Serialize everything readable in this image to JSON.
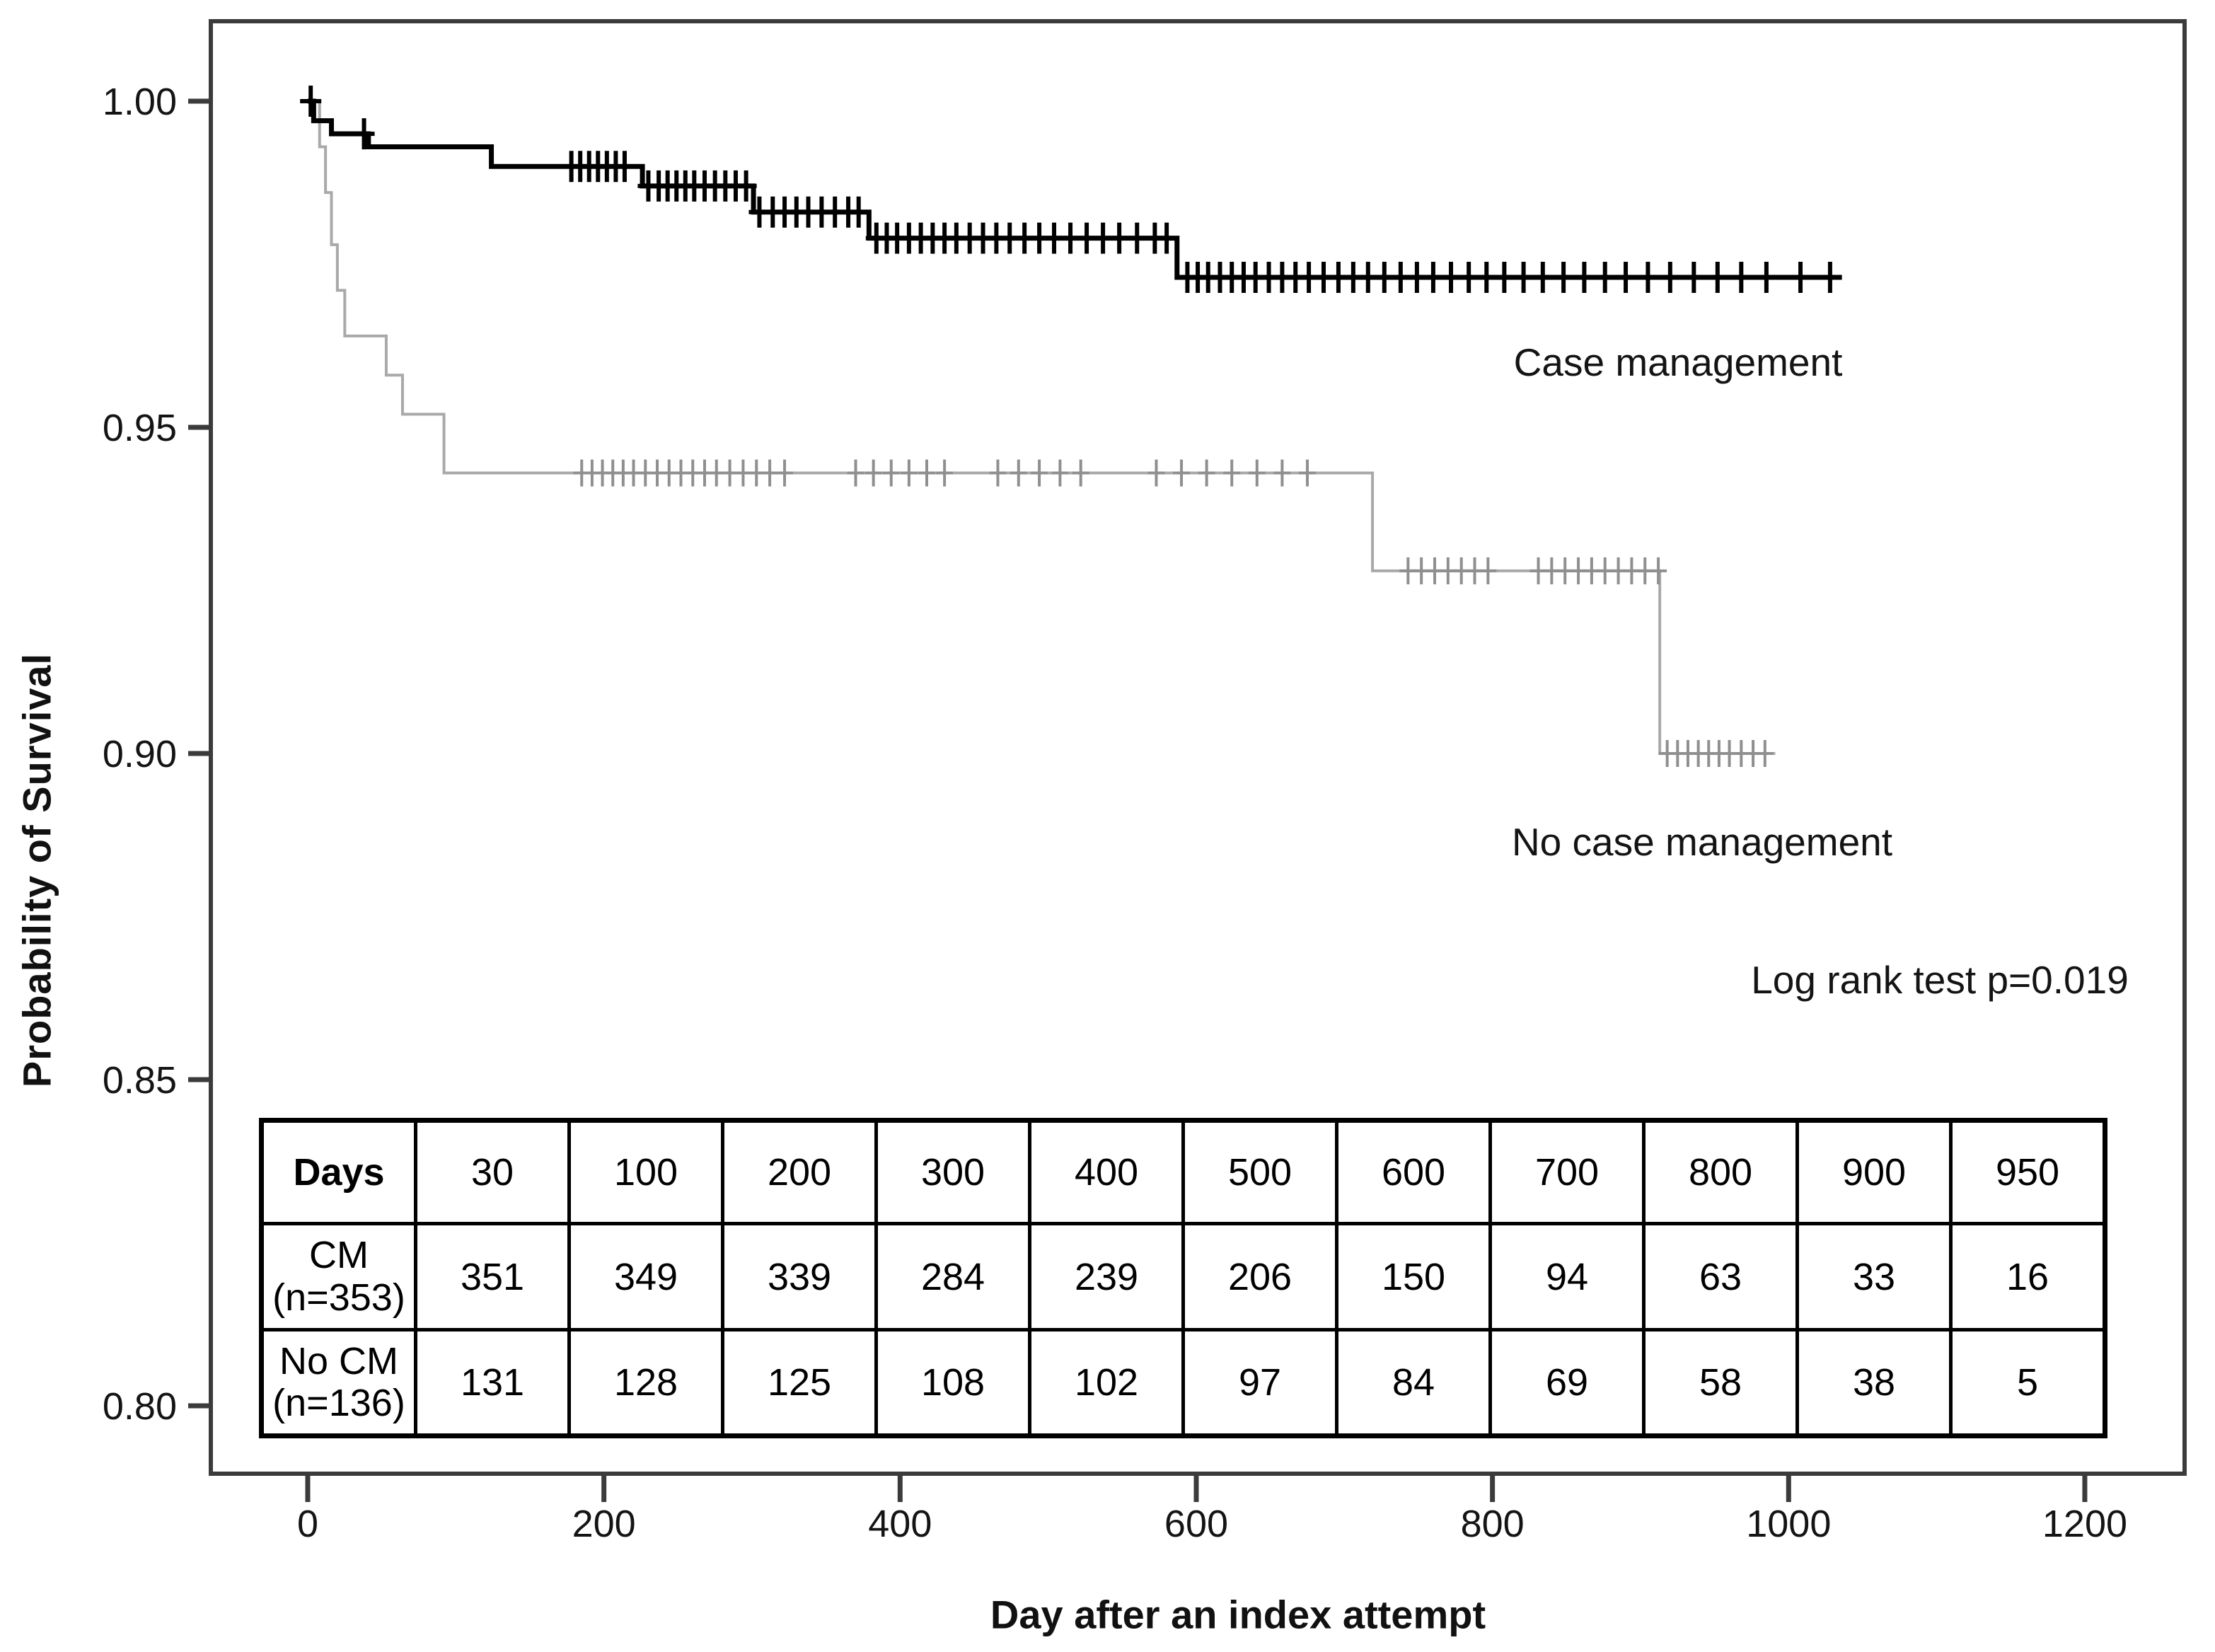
{
  "chart_data": {
    "type": "line",
    "subtype": "kaplan_meier_step",
    "title": "",
    "xlabel": "Day after an index attempt",
    "ylabel": "Probability of Survival",
    "x_ticks": [
      0,
      200,
      400,
      600,
      800,
      1000,
      1200
    ],
    "x_tick_labels": [
      "0",
      "200",
      "400",
      "600",
      "800",
      "1000",
      "1200"
    ],
    "y_ticks": [
      1.0,
      0.95,
      0.9,
      0.85,
      0.8
    ],
    "y_tick_labels": [
      "1.00",
      "0.95",
      "0.90",
      "0.85",
      "0.80"
    ],
    "x_range_days": [
      0,
      1200
    ],
    "y_range": [
      0.8,
      1.0
    ],
    "grid": false,
    "legend_position": "in-plot text annotations",
    "frame_color": "#3b3b3b",
    "text_color": "#141414",
    "annotations": [
      {
        "text": "Case management"
      },
      {
        "text": "No case management"
      },
      {
        "text": "Log rank test p=0.019"
      }
    ],
    "series": [
      {
        "name": "No case management",
        "color": "#a9a9a9",
        "censor_color": "#8f8f8f",
        "line_width": 4,
        "steps": [
          [
            0,
            1.0
          ],
          [
            8,
            0.993
          ],
          [
            12,
            0.986
          ],
          [
            16,
            0.978
          ],
          [
            20,
            0.971
          ],
          [
            25,
            0.964
          ],
          [
            53,
            0.958
          ],
          [
            64,
            0.952
          ],
          [
            92,
            0.943
          ],
          [
            719,
            0.928
          ],
          [
            913,
            0.9
          ]
        ],
        "end_day": 991,
        "censors": [
          {
            "level": 0.943,
            "days": [
              185,
              192,
              199,
              206,
              213,
              220,
              228,
              236,
              244,
              252,
              260,
              268,
              276,
              285,
              294,
              303,
              312,
              322,
              370,
              382,
              394,
              406,
              418,
              430,
              466,
              480,
              494,
              508,
              522,
              573,
              590,
              607,
              624,
              641,
              658,
              675
            ]
          },
          {
            "level": 0.928,
            "days": [
              743,
              752,
              761,
              770,
              779,
              788,
              797,
              831,
              840,
              849,
              858,
              867,
              876,
              885,
              894,
              903,
              912
            ]
          },
          {
            "level": 0.9,
            "days": [
              918,
              925,
              932,
              939,
              946,
              953,
              960,
              968,
              976,
              984
            ]
          }
        ]
      },
      {
        "name": "Case management",
        "color": "#000000",
        "censor_color": "#000000",
        "line_width": 7,
        "steps": [
          [
            0,
            1.0
          ],
          [
            4,
            0.997
          ],
          [
            16,
            0.995
          ],
          [
            41,
            0.993
          ],
          [
            124,
            0.99
          ],
          [
            226,
            0.987
          ],
          [
            301,
            0.983
          ],
          [
            379,
            0.979
          ],
          [
            587,
            0.973
          ]
        ],
        "end_day": 1036,
        "censors": [
          {
            "level": 1.0,
            "days": [
              2
            ]
          },
          {
            "level": 0.995,
            "days": [
              38
            ]
          },
          {
            "level": 0.99,
            "days": [
              178,
              184,
              190,
              196,
              202,
              208,
              214
            ]
          },
          {
            "level": 0.987,
            "days": [
              230,
              237,
              243,
              249,
              255,
              261,
              268,
              275,
              282,
              289,
              296
            ]
          },
          {
            "level": 0.983,
            "days": [
              305,
              314,
              322,
              330,
              338,
              347,
              356,
              365,
              372
            ]
          },
          {
            "level": 0.979,
            "days": [
              384,
              391,
              398,
              406,
              414,
              422,
              430,
              438,
              447,
              456,
              465,
              474,
              484,
              494,
              504,
              515,
              526,
              537,
              548,
              560,
              572,
              580
            ]
          },
          {
            "level": 0.973,
            "days": [
              594,
              601,
              608,
              616,
              624,
              632,
              640,
              649,
              658,
              667,
              676,
              686,
              696,
              706,
              716,
              727,
              738,
              749,
              760,
              772,
              784,
              796,
              808,
              821,
              834,
              848,
              862,
              876,
              890,
              905,
              920,
              936,
              952,
              968,
              985,
              1008,
              1028
            ]
          }
        ]
      }
    ]
  },
  "risk_table": {
    "header_label": "Days",
    "days": [
      "30",
      "100",
      "200",
      "300",
      "400",
      "500",
      "600",
      "700",
      "800",
      "900",
      "950"
    ],
    "rows": [
      {
        "label_lines": [
          "CM",
          "(n=353)"
        ],
        "counts": [
          "351",
          "349",
          "339",
          "284",
          "239",
          "206",
          "150",
          "94",
          "63",
          "33",
          "16"
        ]
      },
      {
        "label_lines": [
          "No CM",
          "(n=136)"
        ],
        "counts": [
          "131",
          "128",
          "125",
          "108",
          "102",
          "97",
          "84",
          "69",
          "58",
          "38",
          "5"
        ]
      }
    ]
  }
}
